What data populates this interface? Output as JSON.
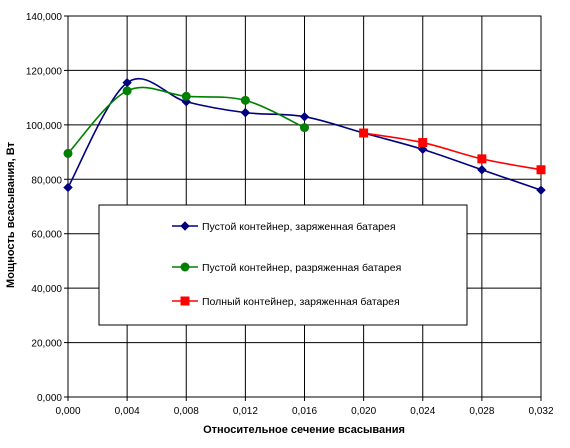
{
  "chart_data": {
    "type": "line",
    "title": "",
    "xlabel": "Относительное сечение всасывания",
    "ylabel": "Мощность всасывания, Вт",
    "xlim": [
      0,
      0.032
    ],
    "ylim": [
      0,
      140000
    ],
    "x_ticks": [
      0.0,
      0.004,
      0.008,
      0.012,
      0.016,
      0.02,
      0.024,
      0.028,
      0.032
    ],
    "x_tick_labels": [
      "0,000",
      "0,004",
      "0,008",
      "0,012",
      "0,016",
      "0,020",
      "0,024",
      "0,028",
      "0,032"
    ],
    "y_ticks": [
      0,
      20000,
      40000,
      60000,
      80000,
      100000,
      120000,
      140000
    ],
    "y_tick_labels": [
      "0,000",
      "20,000",
      "40,000",
      "60,000",
      "80,000",
      "100,000",
      "120,000",
      "140,000"
    ],
    "grid": true,
    "legend_placement": "center-left",
    "series": [
      {
        "name": "Пустой контейнер, заряженная батарея",
        "color": "#000080",
        "marker": "diamond",
        "x": [
          0.0,
          0.004,
          0.008,
          0.012,
          0.016,
          0.02,
          0.024,
          0.028,
          0.032
        ],
        "y": [
          77000,
          115500,
          108500,
          104500,
          103000,
          97000,
          91000,
          83500,
          76000
        ]
      },
      {
        "name": "Пустой контейнер, разряженная батарея",
        "color": "#008000",
        "marker": "circle",
        "x": [
          0.0,
          0.004,
          0.008,
          0.012,
          0.016
        ],
        "y": [
          89500,
          112500,
          110500,
          109000,
          99000
        ]
      },
      {
        "name": "Полный контейнер, заряженная батарея",
        "color": "#ff0000",
        "marker": "square",
        "x": [
          0.02,
          0.024,
          0.028,
          0.032
        ],
        "y": [
          97000,
          93500,
          87500,
          83500
        ]
      }
    ]
  }
}
